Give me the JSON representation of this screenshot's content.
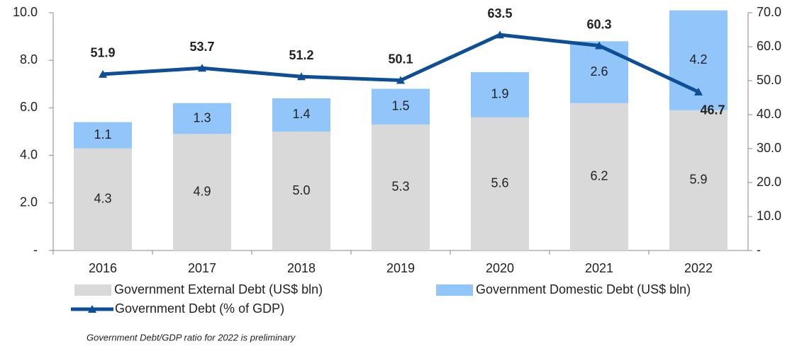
{
  "chart_data": {
    "type": "bar",
    "categories": [
      "2016",
      "2017",
      "2018",
      "2019",
      "2020",
      "2021",
      "2022"
    ],
    "series": [
      {
        "name": "Government External Debt (US$ bln)",
        "color": "#d9d9d9",
        "stack": true,
        "values": [
          4.3,
          4.9,
          5.0,
          5.3,
          5.6,
          6.2,
          5.9
        ],
        "value_labels": [
          "4.3",
          "4.9",
          "5.0",
          "5.3",
          "5.6",
          "6.2",
          "5.9"
        ]
      },
      {
        "name": "Government Domestic Debt (US$ bln)",
        "color": "#92c5f9",
        "stack": true,
        "values": [
          1.1,
          1.3,
          1.4,
          1.5,
          1.9,
          2.6,
          4.2
        ]
      },
      {
        "name": "Government Debt (% of GDP)",
        "color": "#0d4e97",
        "type": "line",
        "axis": "y2",
        "values": [
          51.9,
          53.7,
          51.2,
          50.1,
          63.5,
          60.3,
          46.7
        ]
      }
    ],
    "ylim": [
      0,
      10
    ],
    "yticks": [
      {
        "value": 0,
        "label": "-"
      },
      {
        "value": 2,
        "label": "2.0"
      },
      {
        "value": 4,
        "label": "4.0"
      },
      {
        "value": 6,
        "label": "6.0"
      },
      {
        "value": 8,
        "label": "8.0"
      },
      {
        "value": 10,
        "label": "10.0"
      }
    ],
    "y2lim": [
      0,
      70
    ],
    "y2ticks": [
      {
        "value": 0,
        "label": "-"
      },
      {
        "value": 10,
        "label": "10.0"
      },
      {
        "value": 20,
        "label": "20.0"
      },
      {
        "value": 30,
        "label": "30.0"
      },
      {
        "value": 40,
        "label": "40.0"
      },
      {
        "value": 50,
        "label": "50.0"
      },
      {
        "value": 60,
        "label": "60.0"
      },
      {
        "value": 70,
        "label": "70.0"
      }
    ],
    "annotation": "Government Debt/GDP ratio for 2022 is preliminary"
  }
}
